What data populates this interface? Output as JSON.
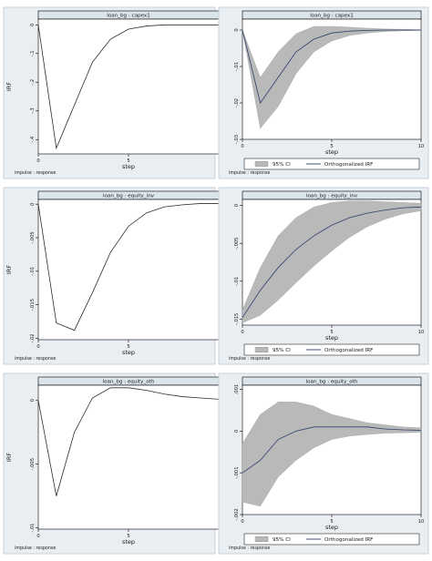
{
  "ylabel": "IRF",
  "xlabel": "step",
  "caption": "impulse : response",
  "legend": {
    "ci_label": "95% CI",
    "irf_label": "Orthogonalized IRF"
  },
  "chart_data": [
    {
      "type": "line",
      "title": "loan_bg : capex1",
      "xlabel": "step",
      "ylabel": "IRF",
      "xlim": [
        0,
        10
      ],
      "ylim": [
        -0.45,
        0.02
      ],
      "xticks": [
        0,
        5
      ],
      "yticks": [
        0,
        -0.1,
        -0.2,
        -0.3,
        -0.4
      ],
      "ytick_labels": [
        "0",
        "-.1",
        "-.2",
        "-.3",
        "-.4"
      ],
      "x": [
        0,
        1,
        2,
        3,
        4,
        5,
        6,
        7,
        8,
        9,
        10
      ],
      "series": [
        {
          "values": [
            0,
            -0.43,
            -0.28,
            -0.13,
            -0.05,
            -0.015,
            -0.004,
            0.0,
            0.0,
            0.0,
            0.0
          ]
        }
      ]
    },
    {
      "type": "line",
      "title": "loan_bg : capex1",
      "xlabel": "step",
      "xlim": [
        0,
        10
      ],
      "ylim": [
        -0.03,
        0.003
      ],
      "xticks": [
        0,
        5,
        10
      ],
      "yticks": [
        0,
        -0.01,
        -0.02,
        -0.03
      ],
      "ytick_labels": [
        "0",
        "-.01",
        "-.02",
        "-.03"
      ],
      "x": [
        0,
        1,
        2,
        3,
        4,
        5,
        6,
        7,
        8,
        9,
        10
      ],
      "series": [
        {
          "values": [
            0,
            -0.02,
            -0.013,
            -0.006,
            -0.0025,
            -0.0008,
            -0.0003,
            -0.0001,
            0,
            0,
            0
          ]
        }
      ],
      "ci_upper": [
        0,
        -0.013,
        -0.006,
        -0.001,
        0.001,
        0.001,
        0.0008,
        0.0005,
        0.0003,
        0.0002,
        0.0001
      ],
      "ci_lower": [
        0,
        -0.027,
        -0.021,
        -0.012,
        -0.006,
        -0.003,
        -0.0015,
        -0.0008,
        -0.0004,
        -0.0002,
        -0.0001
      ]
    },
    {
      "type": "line",
      "title": "loan_bg : equity_inv",
      "xlabel": "step",
      "ylabel": "IRF",
      "xlim": [
        0,
        10
      ],
      "ylim": [
        -0.0202,
        0.0007
      ],
      "xticks": [
        0,
        5
      ],
      "yticks": [
        0,
        -0.005,
        -0.01,
        -0.015,
        -0.02
      ],
      "ytick_labels": [
        "0",
        "-.005",
        "-.01",
        "-.015",
        "-.02"
      ],
      "x": [
        0,
        1,
        2,
        3,
        4,
        5,
        6,
        7,
        8,
        9,
        10
      ],
      "series": [
        {
          "values": [
            0,
            -0.0177,
            -0.0188,
            -0.0132,
            -0.0072,
            -0.0033,
            -0.0013,
            -0.0004,
            -0.0001,
            0.0001,
            0.0001
          ]
        }
      ]
    },
    {
      "type": "line",
      "title": "loan_bg : equity_inv",
      "xlabel": "step",
      "xlim": [
        0,
        10
      ],
      "ylim": [
        -0.0158,
        0.0008
      ],
      "xticks": [
        0,
        5,
        10
      ],
      "yticks": [
        0,
        -0.005,
        -0.01,
        -0.015
      ],
      "ytick_labels": [
        "0",
        "-.005",
        "-.01",
        "-.015"
      ],
      "x": [
        0,
        1,
        2,
        3,
        4,
        5,
        6,
        7,
        8,
        9,
        10
      ],
      "series": [
        {
          "values": [
            -0.0148,
            -0.0112,
            -0.0082,
            -0.0058,
            -0.004,
            -0.0026,
            -0.0016,
            -0.001,
            -0.0006,
            -0.0003,
            -0.0002
          ]
        }
      ],
      "ci_upper": [
        -0.0138,
        -0.0082,
        -0.004,
        -0.0016,
        -0.0002,
        0.0004,
        0.0006,
        0.0006,
        0.0005,
        0.0004,
        0.0003
      ],
      "ci_lower": [
        -0.0155,
        -0.0145,
        -0.0125,
        -0.0102,
        -0.008,
        -0.006,
        -0.0042,
        -0.0028,
        -0.0018,
        -0.0011,
        -0.0007
      ]
    },
    {
      "type": "line",
      "title": "loan_bg : equity_oth",
      "xlabel": "step",
      "ylabel": "IRF",
      "xlim": [
        0,
        10
      ],
      "ylim": [
        -0.0101,
        0.0012
      ],
      "xticks": [
        0,
        5
      ],
      "yticks": [
        0,
        -0.005,
        -0.01
      ],
      "ytick_labels": [
        "0",
        "-.005",
        "-.01"
      ],
      "x": [
        0,
        1,
        2,
        3,
        4,
        5,
        6,
        7,
        8,
        9,
        10
      ],
      "series": [
        {
          "values": [
            0,
            -0.0075,
            -0.0025,
            0.0002,
            0.001,
            0.001,
            0.0008,
            0.0005,
            0.0003,
            0.0002,
            0.0001
          ]
        }
      ]
    },
    {
      "type": "line",
      "title": "loan_bg : equity_oth",
      "xlabel": "step",
      "xlim": [
        0,
        10
      ],
      "ylim": [
        -0.002,
        0.0011
      ],
      "xticks": [
        0,
        5,
        10
      ],
      "yticks": [
        0.001,
        0,
        -0.001,
        -0.002
      ],
      "ytick_labels": [
        ".001",
        "0",
        "-.001",
        "-.002"
      ],
      "x": [
        0,
        1,
        2,
        3,
        4,
        5,
        6,
        7,
        8,
        9,
        10
      ],
      "series": [
        {
          "values": [
            -0.001,
            -0.0007,
            -0.0002,
            0,
            0.0001,
            0.0001,
            0.0001,
            0.0001,
            5e-05,
            3e-05,
            2e-05
          ]
        }
      ],
      "ci_upper": [
        -0.0003,
        0.0004,
        0.0007,
        0.0007,
        0.0006,
        0.0004,
        0.0003,
        0.0002,
        0.00015,
        0.0001,
        8e-05
      ],
      "ci_lower": [
        -0.0017,
        -0.0018,
        -0.0011,
        -0.0007,
        -0.0004,
        -0.0002,
        -0.00012,
        -8e-05,
        -5e-05,
        -4e-05,
        -3e-05
      ]
    }
  ]
}
